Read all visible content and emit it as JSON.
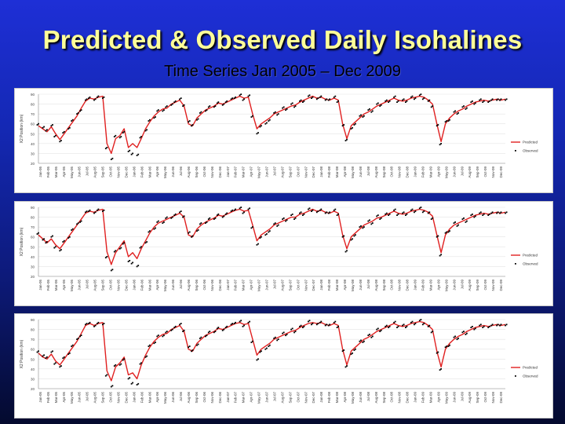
{
  "header": {
    "title": "Predicted & Observed Daily Isohalines",
    "subtitle": "Time Series Jan 2005 – Dec 2009"
  },
  "colors": {
    "predicted": "#e02020",
    "observed": "#000000",
    "background_top": "#1e2fd6",
    "background_bottom": "#040a2e",
    "title": "#ffff99"
  },
  "chart_data": [
    {
      "type": "line",
      "title": "",
      "ylabel": "X2 Position (km)",
      "xlabel": "",
      "ylim": [
        20,
        90
      ],
      "yticks": [
        20,
        30,
        40,
        50,
        60,
        70,
        80,
        90
      ],
      "x_ticks": [
        "Jan-05",
        "Feb-05",
        "Mar-05",
        "Apr-05",
        "May-05",
        "Jun-05",
        "Jul-05",
        "Aug-05",
        "Sep-05",
        "Oct-05",
        "Nov-05",
        "Dec-05",
        "Jan-06",
        "Feb-06",
        "Mar-06",
        "Apr-06",
        "May-06",
        "Jun-06",
        "Jul-06",
        "Aug-06",
        "Sep-06",
        "Oct-06",
        "Nov-06",
        "Dec-06",
        "Jan-07",
        "Feb-07",
        "Mar-07",
        "Apr-07",
        "May-07",
        "Jun-07",
        "Jul-07",
        "Aug-07",
        "Sep-07",
        "Oct-07",
        "Nov-07",
        "Dec-07",
        "Jan-08",
        "Feb-08",
        "Mar-08",
        "Apr-08",
        "May-08",
        "Jun-08",
        "Jul-08",
        "Aug-08",
        "Sep-08",
        "Oct-08",
        "Nov-08",
        "Dec-08",
        "Jan-09",
        "Feb-09",
        "Mar-09",
        "Apr-09",
        "May-09",
        "Jun-09",
        "Jul-09",
        "Aug-09",
        "Sep-09",
        "Oct-09",
        "Nov-09",
        "Dec-09"
      ],
      "grid": true,
      "legend_position": "right",
      "series": [
        {
          "name": "Predicted",
          "style": "line",
          "values": [
            58,
            55,
            52,
            57,
            50,
            44,
            50,
            56,
            62,
            68,
            76,
            83,
            86,
            85,
            87,
            88,
            40,
            30,
            45,
            48,
            55,
            36,
            40,
            36,
            45,
            55,
            62,
            68,
            72,
            75,
            76,
            80,
            82,
            84,
            78,
            60,
            58,
            66,
            70,
            74,
            76,
            78,
            81,
            80,
            82,
            84,
            86,
            88,
            86,
            87,
            70,
            55,
            60,
            63,
            66,
            70,
            72,
            74,
            76,
            78,
            79,
            82,
            84,
            86,
            88,
            86,
            87,
            85,
            84,
            86,
            84,
            60,
            45,
            58,
            62,
            66,
            70,
            72,
            75,
            78,
            80,
            82,
            84,
            86,
            84,
            83,
            84,
            86,
            87,
            88,
            87,
            84,
            80,
            60,
            42,
            60,
            66,
            70,
            73,
            75,
            78,
            80,
            82,
            83,
            84,
            83,
            84,
            85,
            84,
            85
          ]
        },
        {
          "name": "Observed",
          "style": "points",
          "values": [
            60,
            56,
            54,
            58,
            48,
            42,
            52,
            55,
            64,
            70,
            74,
            84,
            87,
            84,
            88,
            86,
            36,
            24,
            48,
            46,
            52,
            32,
            30,
            28,
            47,
            53,
            64,
            66,
            74,
            73,
            78,
            79,
            83,
            85,
            79,
            62,
            59,
            64,
            72,
            73,
            78,
            77,
            82,
            79,
            83,
            85,
            87,
            89,
            85,
            88,
            68,
            50,
            58,
            60,
            64,
            71,
            70,
            76,
            75,
            80,
            78,
            83,
            83,
            88,
            87,
            85,
            88,
            84,
            85,
            87,
            83,
            58,
            44,
            55,
            60,
            68,
            68,
            74,
            73,
            80,
            79,
            83,
            83,
            87,
            83,
            84,
            83,
            87,
            86,
            89,
            86,
            83,
            78,
            58,
            40,
            62,
            64,
            72,
            71,
            77,
            76,
            82,
            81,
            84,
            83,
            82,
            85,
            84,
            85,
            84
          ]
        }
      ]
    },
    {
      "type": "line",
      "title": "",
      "ylabel": "X2 Position (km)",
      "xlabel": "",
      "ylim": [
        20,
        90
      ],
      "yticks": [
        20,
        30,
        40,
        50,
        60,
        70,
        80,
        90
      ],
      "x_ticks": [
        "Jan-05",
        "Feb-05",
        "Mar-05",
        "Apr-05",
        "May-05",
        "Jun-05",
        "Jul-05",
        "Aug-05",
        "Sep-05",
        "Oct-05",
        "Nov-05",
        "Dec-05",
        "Jan-06",
        "Feb-06",
        "Mar-06",
        "Apr-06",
        "May-06",
        "Jun-06",
        "Jul-06",
        "Aug-06",
        "Sep-06",
        "Oct-06",
        "Nov-06",
        "Dec-06",
        "Jan-07",
        "Feb-07",
        "Mar-07",
        "Apr-07",
        "May-07",
        "Jun-07",
        "Jul-07",
        "Aug-07",
        "Sep-07",
        "Oct-07",
        "Nov-07",
        "Dec-07",
        "Jan-08",
        "Feb-08",
        "Mar-08",
        "Apr-08",
        "May-08",
        "Jun-08",
        "Jul-08",
        "Aug-08",
        "Sep-08",
        "Oct-08",
        "Nov-08",
        "Dec-08",
        "Jan-09",
        "Feb-09",
        "Mar-09",
        "Apr-09",
        "May-09",
        "Jun-09",
        "Jul-09",
        "Aug-09",
        "Sep-09",
        "Oct-09",
        "Nov-09",
        "Dec-09"
      ],
      "grid": true,
      "legend_position": "right",
      "series": [
        {
          "name": "Predicted",
          "style": "line",
          "values": [
            62,
            58,
            54,
            58,
            52,
            48,
            54,
            60,
            66,
            72,
            78,
            84,
            86,
            85,
            87,
            88,
            45,
            32,
            44,
            50,
            56,
            40,
            44,
            38,
            48,
            56,
            64,
            70,
            74,
            76,
            78,
            80,
            82,
            84,
            80,
            62,
            60,
            68,
            72,
            75,
            77,
            79,
            82,
            81,
            83,
            85,
            87,
            88,
            86,
            87,
            72,
            56,
            62,
            65,
            68,
            72,
            74,
            76,
            78,
            80,
            80,
            83,
            84,
            86,
            88,
            86,
            87,
            85,
            84,
            86,
            84,
            62,
            48,
            60,
            64,
            68,
            72,
            74,
            76,
            79,
            80,
            82,
            84,
            86,
            84,
            83,
            84,
            86,
            87,
            88,
            87,
            85,
            81,
            62,
            44,
            62,
            68,
            72,
            74,
            76,
            78,
            80,
            82,
            83,
            84,
            83,
            84,
            85,
            84,
            85
          ]
        },
        {
          "name": "Observed",
          "style": "points",
          "values": [
            64,
            57,
            55,
            60,
            50,
            46,
            56,
            59,
            68,
            73,
            76,
            85,
            87,
            84,
            88,
            86,
            40,
            26,
            46,
            48,
            54,
            35,
            34,
            30,
            50,
            54,
            66,
            68,
            76,
            74,
            80,
            79,
            83,
            85,
            81,
            64,
            61,
            66,
            74,
            74,
            79,
            78,
            83,
            80,
            84,
            86,
            88,
            89,
            85,
            88,
            70,
            52,
            60,
            62,
            66,
            73,
            72,
            78,
            77,
            82,
            79,
            84,
            83,
            88,
            87,
            85,
            88,
            84,
            85,
            87,
            83,
            60,
            46,
            57,
            62,
            70,
            70,
            76,
            74,
            81,
            79,
            83,
            83,
            87,
            83,
            84,
            83,
            87,
            86,
            89,
            86,
            84,
            79,
            60,
            42,
            64,
            66,
            74,
            72,
            78,
            76,
            82,
            81,
            84,
            83,
            82,
            85,
            84,
            85,
            84
          ]
        }
      ]
    },
    {
      "type": "line",
      "title": "",
      "ylabel": "X2 Position (km)",
      "xlabel": "",
      "ylim": [
        20,
        90
      ],
      "yticks": [
        20,
        30,
        40,
        50,
        60,
        70,
        80,
        90
      ],
      "x_ticks": [
        "Jan-05",
        "Feb-05",
        "Mar-05",
        "Apr-05",
        "May-05",
        "Jun-05",
        "Jul-05",
        "Aug-05",
        "Sep-05",
        "Oct-05",
        "Nov-05",
        "Dec-05",
        "Jan-06",
        "Feb-06",
        "Mar-06",
        "Apr-06",
        "May-06",
        "Jun-06",
        "Jul-06",
        "Aug-06",
        "Sep-06",
        "Oct-06",
        "Nov-06",
        "Dec-06",
        "Jan-07",
        "Feb-07",
        "Mar-07",
        "Apr-07",
        "May-07",
        "Jun-07",
        "Jul-07",
        "Aug-07",
        "Sep-07",
        "Oct-07",
        "Nov-07",
        "Dec-07",
        "Jan-08",
        "Feb-08",
        "Mar-08",
        "Apr-08",
        "May-08",
        "Jun-08",
        "Jul-08",
        "Aug-08",
        "Sep-08",
        "Oct-08",
        "Nov-08",
        "Dec-08",
        "Jan-09",
        "Feb-09",
        "Mar-09",
        "Apr-09",
        "May-09",
        "Jun-09",
        "Jul-09",
        "Aug-09",
        "Sep-09",
        "Oct-09",
        "Nov-09",
        "Dec-09"
      ],
      "grid": true,
      "legend_position": "right",
      "series": [
        {
          "name": "Predicted",
          "style": "line",
          "values": [
            56,
            52,
            50,
            55,
            48,
            44,
            50,
            56,
            62,
            68,
            76,
            84,
            86,
            84,
            86,
            87,
            38,
            28,
            42,
            46,
            52,
            34,
            36,
            30,
            44,
            54,
            62,
            68,
            72,
            75,
            76,
            80,
            82,
            84,
            78,
            60,
            58,
            66,
            70,
            74,
            76,
            78,
            81,
            80,
            82,
            84,
            86,
            87,
            85,
            86,
            70,
            54,
            60,
            63,
            66,
            70,
            72,
            74,
            76,
            78,
            79,
            82,
            84,
            86,
            87,
            86,
            87,
            85,
            84,
            86,
            84,
            60,
            44,
            58,
            62,
            66,
            70,
            72,
            75,
            78,
            80,
            82,
            84,
            86,
            84,
            83,
            84,
            86,
            87,
            88,
            87,
            84,
            80,
            58,
            42,
            60,
            66,
            70,
            73,
            75,
            78,
            80,
            82,
            83,
            84,
            83,
            84,
            85,
            84,
            85
          ]
        },
        {
          "name": "Observed",
          "style": "points",
          "values": [
            58,
            53,
            52,
            57,
            46,
            42,
            52,
            55,
            64,
            70,
            74,
            85,
            87,
            83,
            87,
            85,
            34,
            22,
            44,
            44,
            50,
            30,
            26,
            24,
            46,
            52,
            64,
            66,
            74,
            73,
            78,
            79,
            83,
            85,
            79,
            62,
            59,
            64,
            72,
            73,
            78,
            77,
            82,
            79,
            83,
            85,
            87,
            88,
            84,
            87,
            68,
            49,
            58,
            60,
            64,
            71,
            70,
            76,
            75,
            80,
            78,
            83,
            83,
            88,
            86,
            85,
            88,
            84,
            85,
            87,
            83,
            58,
            43,
            55,
            60,
            68,
            68,
            74,
            73,
            80,
            79,
            83,
            83,
            87,
            83,
            84,
            83,
            87,
            86,
            89,
            86,
            83,
            78,
            56,
            40,
            62,
            64,
            72,
            71,
            77,
            76,
            82,
            81,
            84,
            83,
            82,
            85,
            84,
            85,
            84
          ]
        }
      ]
    }
  ]
}
